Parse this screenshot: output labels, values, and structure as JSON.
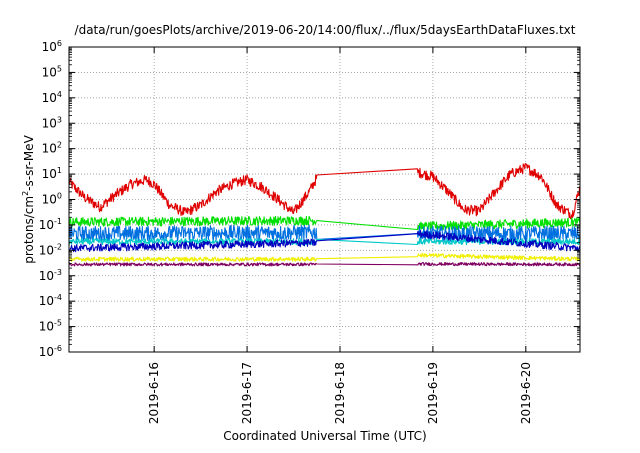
{
  "chart_data": {
    "type": "line",
    "title": "/data/run/goesPlots/archive/2019-06-20/14:00/flux/../flux/5daysEarthDataFluxes.txt",
    "xlabel": "Coordinated Universal Time (UTC)",
    "ylabel": "protons/cm2-s-sr-MeV",
    "ylabel_parts": {
      "pre": "protons/cm",
      "sup": "2",
      "post": "-s-sr-MeV"
    },
    "yscale": "log",
    "ylim": [
      1e-06,
      1000000.0
    ],
    "y_ticks": [
      {
        "base": "10",
        "exp": "-6",
        "value": 1e-06
      },
      {
        "base": "10",
        "exp": "-5",
        "value": 1e-05
      },
      {
        "base": "10",
        "exp": "-4",
        "value": 0.0001
      },
      {
        "base": "10",
        "exp": "-3",
        "value": 0.001
      },
      {
        "base": "10",
        "exp": "-2",
        "value": 0.01
      },
      {
        "base": "10",
        "exp": "-1",
        "value": 0.1
      },
      {
        "base": "10",
        "exp": "0",
        "value": 1
      },
      {
        "base": "10",
        "exp": "1",
        "value": 10
      },
      {
        "base": "10",
        "exp": "2",
        "value": 100
      },
      {
        "base": "10",
        "exp": "3",
        "value": 1000
      },
      {
        "base": "10",
        "exp": "4",
        "value": 10000
      },
      {
        "base": "10",
        "exp": "5",
        "value": 100000
      },
      {
        "base": "10",
        "exp": "6",
        "value": 1000000
      }
    ],
    "xlim": [
      "2019-06-15 02:00",
      "2019-06-20 14:00"
    ],
    "x_ticks": [
      "2019-6-16",
      "2019-6-17",
      "2019-6-18",
      "2019-6-19",
      "2019-6-20"
    ],
    "x_tick_dates": [
      "2019-06-16",
      "2019-06-17",
      "2019-06-18",
      "2019-06-19",
      "2019-06-20"
    ],
    "grid": true,
    "data_gap": [
      "2019-06-17 18:00",
      "2019-06-18 20:00"
    ],
    "series": [
      {
        "color": "#e00000",
        "x": [
          "2019-06-15 02:00",
          "2019-06-15 06:00",
          "2019-06-15 10:00",
          "2019-06-15 14:00",
          "2019-06-15 18:00",
          "2019-06-15 22:00",
          "2019-06-16 00:00",
          "2019-06-16 04:00",
          "2019-06-16 08:00",
          "2019-06-16 12:00",
          "2019-06-16 16:00",
          "2019-06-16 20:00",
          "2019-06-17 00:00",
          "2019-06-17 04:00",
          "2019-06-17 08:00",
          "2019-06-17 12:00",
          "2019-06-17 16:00",
          "2019-06-17 18:00",
          "2019-06-18 20:00",
          "2019-06-19 00:00",
          "2019-06-19 04:00",
          "2019-06-19 08:00",
          "2019-06-19 12:00",
          "2019-06-19 16:00",
          "2019-06-19 20:00",
          "2019-06-20 00:00",
          "2019-06-20 04:00",
          "2019-06-20 08:00",
          "2019-06-20 12:00",
          "2019-06-20 14:00"
        ],
        "values": [
          5,
          1.2,
          0.5,
          1.5,
          4,
          6,
          4,
          0.6,
          0.3,
          0.6,
          2,
          4,
          6,
          3,
          1,
          0.3,
          2,
          7,
          12,
          8,
          2,
          0.4,
          0.35,
          2,
          10,
          18,
          8,
          0.6,
          0.25,
          3
        ],
        "noise": 0.2
      },
      {
        "color": "#00e000",
        "x": [
          "2019-06-15 02:00",
          "2019-06-17 18:00",
          "2019-06-18 20:00",
          "2019-06-20 14:00"
        ],
        "values": [
          0.13,
          0.15,
          0.085,
          0.13
        ],
        "noise": 0.18
      },
      {
        "color": "#0070e0",
        "x": [
          "2019-06-15 02:00",
          "2019-06-17 18:00",
          "2019-06-18 20:00",
          "2019-06-20 14:00"
        ],
        "values": [
          0.045,
          0.05,
          0.045,
          0.045
        ],
        "noise": 0.3
      },
      {
        "color": "#00c8c8",
        "x": [
          "2019-06-15 02:00",
          "2019-06-17 18:00",
          "2019-06-18 20:00",
          "2019-06-20 14:00"
        ],
        "values": [
          0.022,
          0.022,
          0.022,
          0.022
        ],
        "noise": 0.12
      },
      {
        "color": "#0000c0",
        "x": [
          "2019-06-15 02:00",
          "2019-06-17 18:00",
          "2019-06-18 20:00",
          "2019-06-20 14:00"
        ],
        "values": [
          0.012,
          0.02,
          0.045,
          0.012
        ],
        "noise": 0.15
      },
      {
        "color": "#f0f000",
        "x": [
          "2019-06-15 02:00",
          "2019-06-17 18:00",
          "2019-06-18 20:00",
          "2019-06-20 14:00"
        ],
        "values": [
          0.0045,
          0.0045,
          0.0065,
          0.0045
        ],
        "noise": 0.08
      },
      {
        "color": "#800060",
        "x": [
          "2019-06-15 02:00",
          "2019-06-17 18:00",
          "2019-06-18 20:00",
          "2019-06-20 14:00"
        ],
        "values": [
          0.0028,
          0.0028,
          0.0029,
          0.0028
        ],
        "noise": 0.06
      }
    ]
  }
}
